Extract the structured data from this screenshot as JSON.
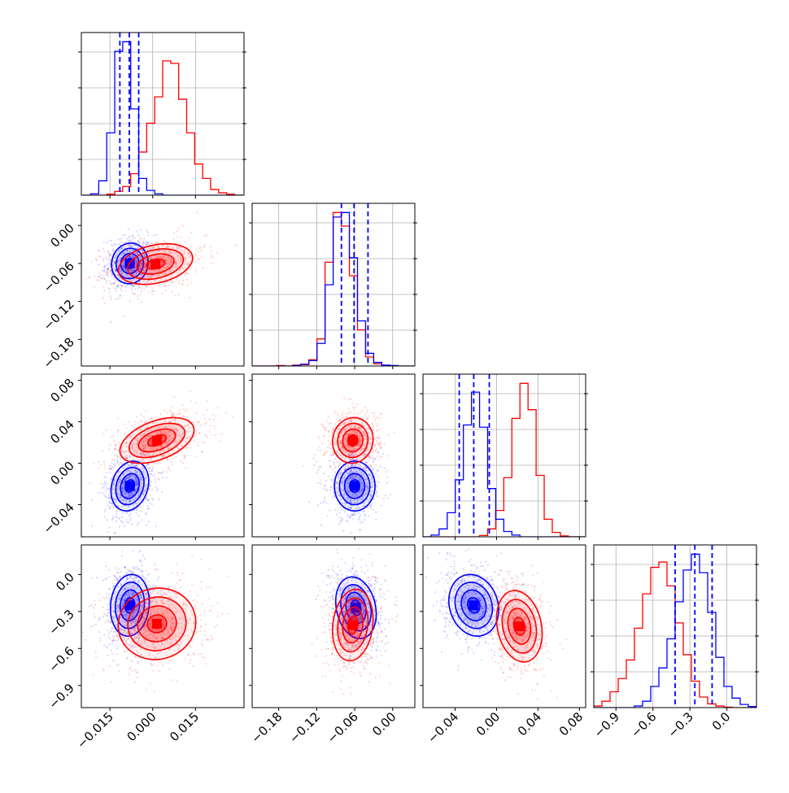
{
  "chart_data": {
    "type": "corner",
    "title": "",
    "series": [
      {
        "name": "",
        "color": "#0000ff"
      },
      {
        "name": "",
        "color": "#ff0000"
      }
    ],
    "params": [
      {
        "index": 0,
        "range": [
          -0.025,
          0.032
        ],
        "ticks": [
          -0.015,
          0.0,
          0.015
        ],
        "tick_labels": [
          "−0.015",
          "0.000",
          "0.015"
        ]
      },
      {
        "index": 1,
        "range": [
          -0.222,
          0.035
        ],
        "ticks": [
          -0.18,
          -0.12,
          -0.06,
          0.0
        ],
        "tick_labels": [
          "−0.18",
          "−0.12",
          "−0.06",
          "0.00"
        ]
      },
      {
        "index": 2,
        "range": [
          -0.071,
          0.086
        ],
        "ticks": [
          -0.04,
          0.0,
          0.04,
          0.08
        ],
        "tick_labels": [
          "−0.04",
          "0.00",
          "0.04",
          "0.08"
        ]
      },
      {
        "index": 3,
        "range": [
          -1.08,
          0.24
        ],
        "ticks": [
          -0.9,
          -0.6,
          -0.3,
          0.0
        ],
        "tick_labels": [
          "−0.9",
          "−0.6",
          "−0.3",
          "0.0"
        ]
      }
    ],
    "marginals": [
      {
        "param": 0,
        "quantiles": [
          -0.0115,
          -0.0082,
          -0.0049
        ],
        "blue": {
          "edges_start": -0.0245,
          "bin_width": 0.0028,
          "counts": [
            0,
            3,
            30,
            130,
            300,
            320,
            180,
            35,
            10,
            3,
            0,
            0,
            0,
            0,
            0,
            0,
            0,
            0,
            0,
            0
          ]
        },
        "red": {
          "edges_start": -0.0245,
          "bin_width": 0.0028,
          "counts": [
            0,
            0,
            0,
            2,
            8,
            18,
            45,
            90,
            150,
            205,
            280,
            275,
            200,
            130,
            65,
            35,
            12,
            5,
            2,
            0
          ]
        }
      },
      {
        "param": 1,
        "quantiles": [
          -0.081,
          -0.061,
          -0.039
        ],
        "blue": {
          "edges_start": -0.222,
          "bin_width": 0.0128,
          "counts": [
            0,
            0,
            0,
            0,
            0,
            1,
            4,
            12,
            50,
            180,
            330,
            340,
            240,
            100,
            28,
            8,
            2,
            1,
            0,
            0
          ]
        },
        "red": {
          "edges_start": -0.222,
          "bin_width": 0.0128,
          "counts": [
            0,
            0,
            0,
            1,
            0,
            2,
            3,
            14,
            60,
            230,
            340,
            310,
            200,
            80,
            20,
            5,
            1,
            0,
            0,
            0
          ]
        }
      },
      {
        "param": 2,
        "quantiles": [
          -0.036,
          -0.022,
          -0.007
        ],
        "blue": {
          "edges_start": -0.071,
          "bin_width": 0.0078,
          "counts": [
            0,
            4,
            18,
            55,
            130,
            255,
            330,
            250,
            110,
            40,
            12,
            4,
            0,
            0,
            0,
            0,
            0,
            0,
            0,
            0
          ]
        },
        "red": {
          "edges_start": -0.071,
          "bin_width": 0.0078,
          "counts": [
            0,
            0,
            0,
            0,
            0,
            0,
            0,
            3,
            18,
            60,
            135,
            270,
            350,
            290,
            140,
            40,
            10,
            2,
            0,
            0
          ]
        }
      },
      {
        "param": 3,
        "quantiles": [
          -0.42,
          -0.26,
          -0.12
        ],
        "blue": {
          "edges_start": -1.08,
          "bin_width": 0.066,
          "counts": [
            0,
            0,
            0,
            0,
            0,
            3,
            12,
            40,
            75,
            130,
            200,
            260,
            290,
            255,
            180,
            95,
            40,
            18,
            6,
            2
          ]
        },
        "red": {
          "edges_start": -1.08,
          "bin_width": 0.066,
          "counts": [
            3,
            12,
            30,
            55,
            90,
            150,
            215,
            265,
            275,
            230,
            160,
            100,
            50,
            20,
            7,
            3,
            1,
            0,
            0,
            0
          ]
        }
      }
    ],
    "joints": [
      {
        "x": 0,
        "y": 1,
        "blue": {
          "mx": -0.008,
          "my": -0.06,
          "sx": 0.0032,
          "sy": 0.016,
          "rho": 0.05
        },
        "red": {
          "mx": 0.001,
          "my": -0.061,
          "sx": 0.0065,
          "sy": 0.016,
          "rho": 0.3
        }
      },
      {
        "x": 0,
        "y": 2,
        "blue": {
          "mx": -0.008,
          "my": -0.022,
          "sx": 0.0033,
          "sy": 0.012,
          "rho": 0.2
        },
        "red": {
          "mx": 0.0015,
          "my": 0.022,
          "sx": 0.0065,
          "sy": 0.011,
          "rho": 0.45
        }
      },
      {
        "x": 1,
        "y": 2,
        "blue": {
          "mx": -0.06,
          "my": -0.022,
          "sx": 0.016,
          "sy": 0.012,
          "rho": 0.0
        },
        "red": {
          "mx": -0.063,
          "my": 0.022,
          "sx": 0.016,
          "sy": 0.011,
          "rho": 0.05
        }
      },
      {
        "x": 0,
        "y": 3,
        "blue": {
          "mx": -0.008,
          "my": -0.25,
          "sx": 0.0034,
          "sy": 0.125,
          "rho": 0.1
        },
        "red": {
          "mx": 0.0015,
          "my": -0.4,
          "sx": 0.0068,
          "sy": 0.145,
          "rho": 0.05
        }
      },
      {
        "x": 1,
        "y": 3,
        "blue": {
          "mx": -0.058,
          "my": -0.27,
          "sx": 0.016,
          "sy": 0.125,
          "rho": -0.2
        },
        "red": {
          "mx": -0.063,
          "my": -0.41,
          "sx": 0.016,
          "sy": 0.145,
          "rho": 0.15
        }
      },
      {
        "x": 2,
        "y": 3,
        "blue": {
          "mx": -0.022,
          "my": -0.25,
          "sx": 0.012,
          "sy": 0.125,
          "rho": -0.15
        },
        "red": {
          "mx": 0.022,
          "my": -0.42,
          "sx": 0.011,
          "sy": 0.145,
          "rho": -0.2
        }
      }
    ],
    "contour_levels_sigma": [
      0.5,
      1.0,
      1.5,
      2.0
    ],
    "grid": true,
    "legend": "none"
  }
}
